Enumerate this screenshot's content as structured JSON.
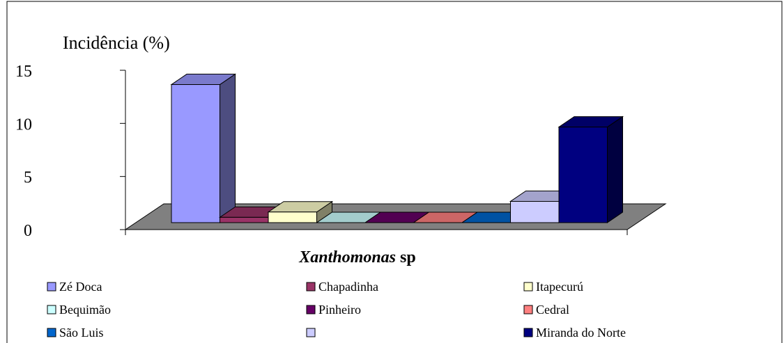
{
  "chart_data": {
    "type": "bar3d",
    "y_label": "Incidência (%)",
    "x_label": "Xanthomonas sp",
    "ylim": [
      0,
      15
    ],
    "yticks": [
      0,
      5,
      10,
      15
    ],
    "series": [
      {
        "name": "Zé Doca",
        "color": "#9999ff",
        "values": [
          13
        ]
      },
      {
        "name": "Chapadinha",
        "color": "#993366",
        "values": [
          0.5
        ]
      },
      {
        "name": "Itapecurú",
        "color": "#ffffcc",
        "values": [
          1
        ]
      },
      {
        "name": "Bequimão",
        "color": "#ccffff",
        "values": [
          0
        ]
      },
      {
        "name": "Pinheiro",
        "color": "#660066",
        "values": [
          0
        ]
      },
      {
        "name": "Cedral",
        "color": "#ff8080",
        "values": [
          0
        ]
      },
      {
        "name": "São Luis",
        "color": "#0066cc",
        "values": [
          0
        ]
      },
      {
        "name": null,
        "color": "#ccccff",
        "values": [
          2
        ]
      },
      {
        "name": "Miranda do Norte",
        "color": "#000080",
        "values": [
          9
        ]
      }
    ]
  }
}
